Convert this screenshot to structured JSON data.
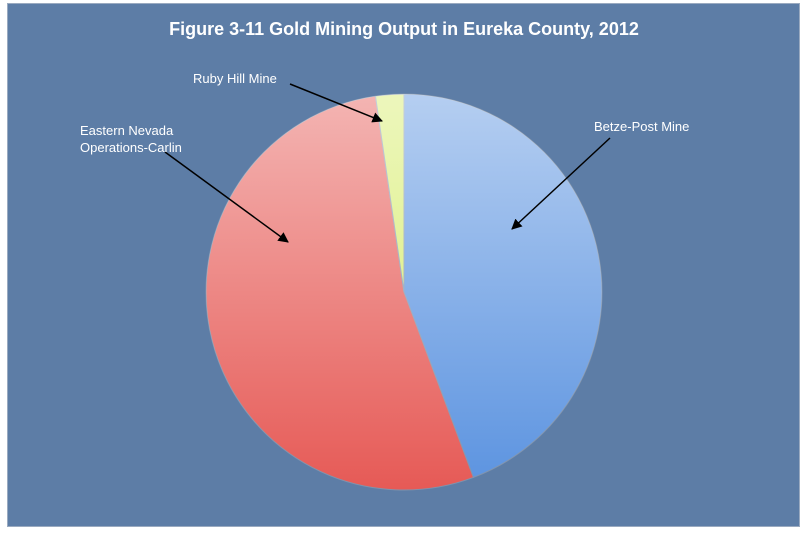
{
  "chart_data": {
    "type": "pie",
    "title": "Figure 3-11 Gold Mining Output in Eureka County, 2012",
    "categories": [
      "Betze-Post Mine",
      "Eastern Nevada Operations-Carlin",
      "Ruby Hill Mine"
    ],
    "values": [
      44.3,
      53.4,
      2.3
    ],
    "colors": [
      "#5b93e0",
      "#e65a56",
      "#d6ec6a"
    ]
  }
}
